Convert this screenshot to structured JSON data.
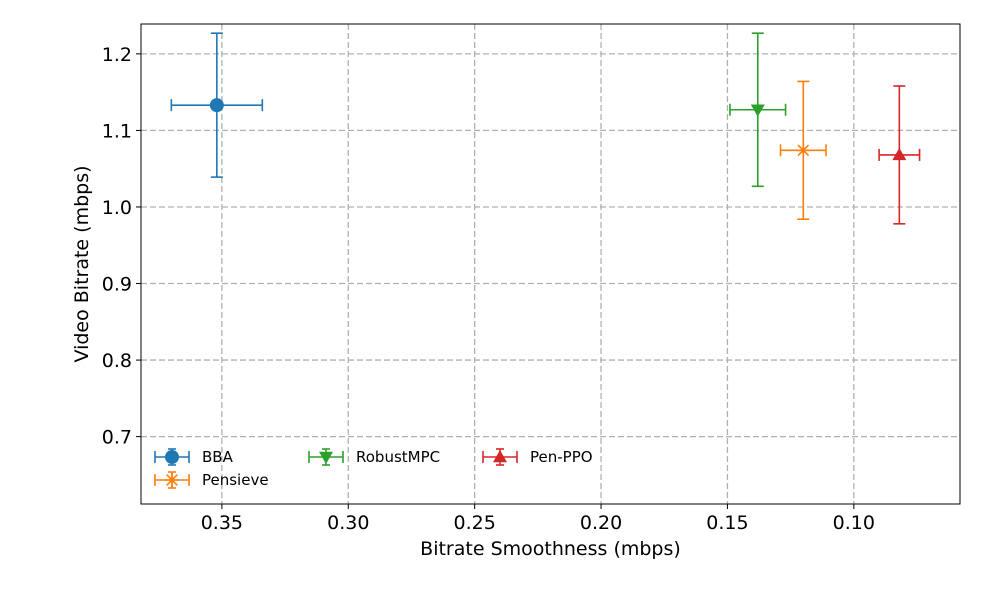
{
  "chart_data": {
    "type": "scatter",
    "title": "",
    "xlabel": "Bitrate Smoothness (mbps)",
    "ylabel": "Video Bitrate (mbps)",
    "x_inverted": true,
    "xlim": [
      0.382,
      0.058
    ],
    "ylim": [
      0.612,
      1.239
    ],
    "x_ticks": [
      "0.35",
      "0.30",
      "0.25",
      "0.20",
      "0.15",
      "0.10"
    ],
    "y_ticks": [
      "0.7",
      "0.8",
      "0.9",
      "1.0",
      "1.1",
      "1.2"
    ],
    "grid": true,
    "legend_position": "lower-left",
    "series": [
      {
        "name": "BBA",
        "color": "#1f77b4",
        "marker": "circle",
        "x": 0.352,
        "y": 1.133,
        "x_err": 0.018,
        "y_err": 0.094
      },
      {
        "name": "Pensieve",
        "color": "#ff7f0e",
        "marker": "x-star",
        "x": 0.12,
        "y": 1.074,
        "x_err": 0.009,
        "y_err": 0.09
      },
      {
        "name": "RobustMPC",
        "color": "#2ca02c",
        "marker": "triangle-down",
        "x": 0.138,
        "y": 1.127,
        "x_err": 0.011,
        "y_err": 0.1
      },
      {
        "name": "Pen-PPO",
        "color": "#d62728",
        "marker": "triangle-up",
        "x": 0.082,
        "y": 1.068,
        "x_err": 0.008,
        "y_err": 0.09
      }
    ]
  }
}
